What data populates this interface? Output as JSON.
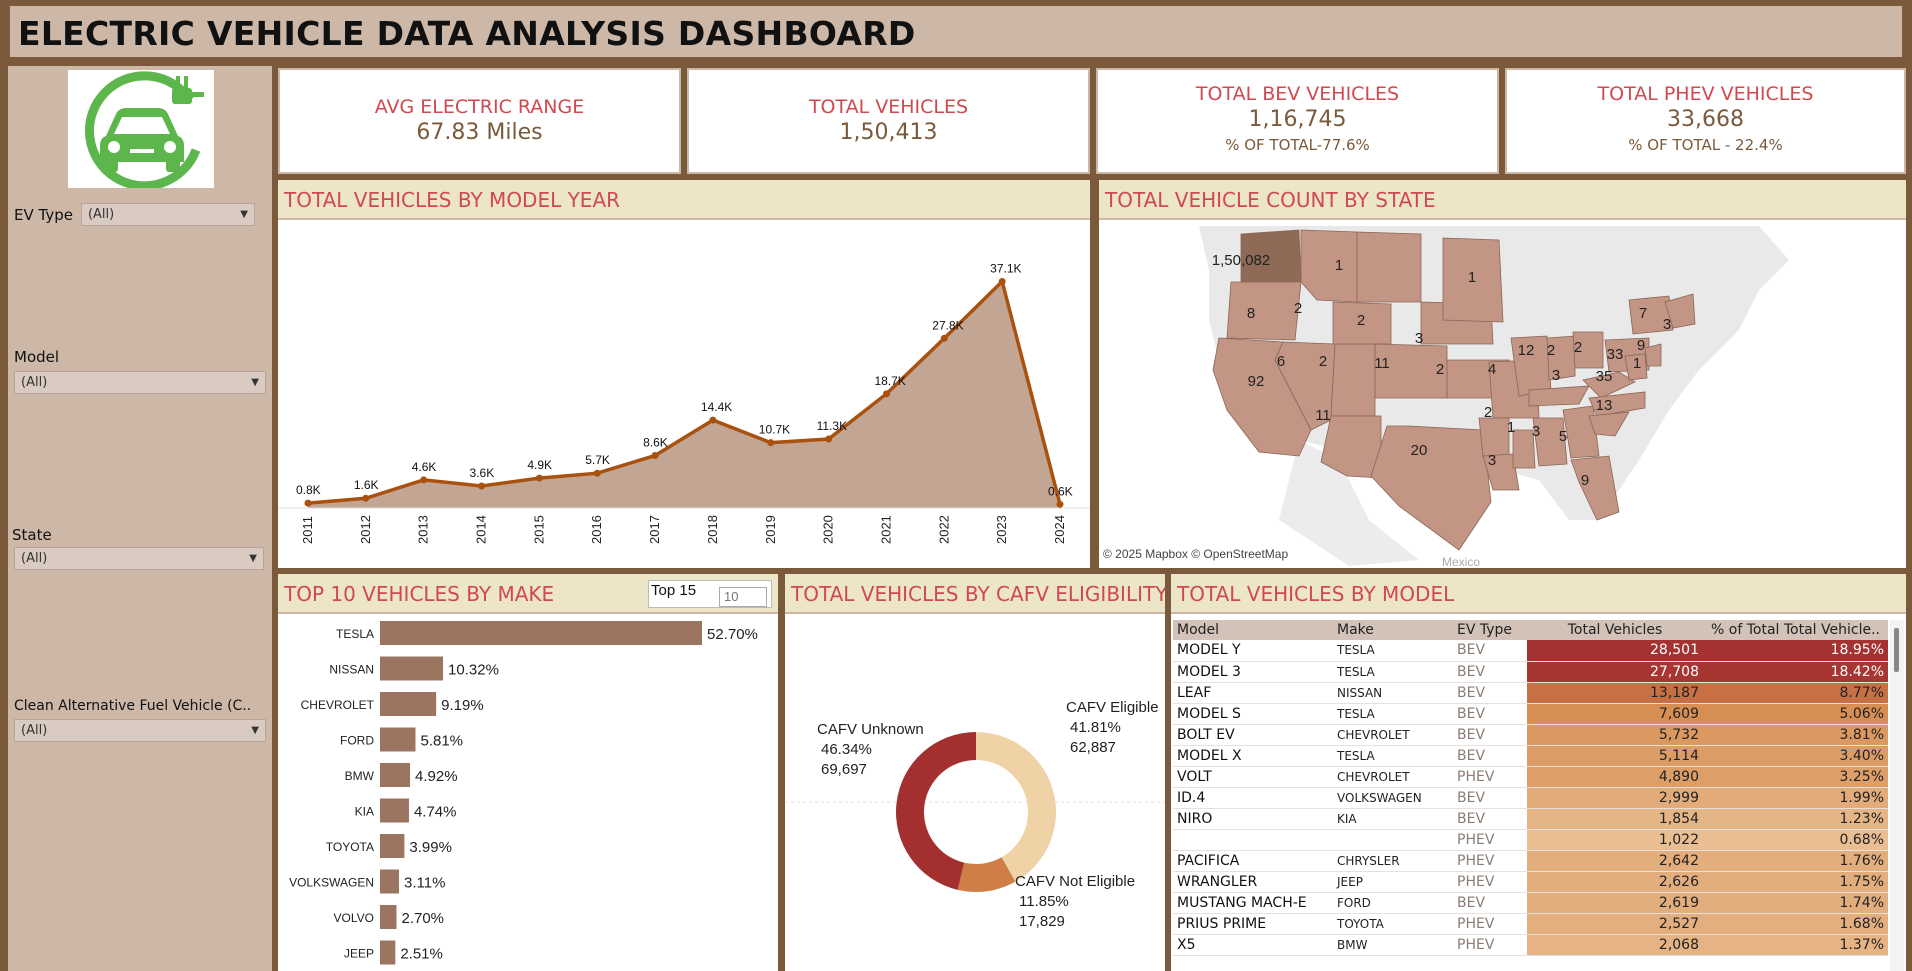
{
  "title": "ELECTRIC VEHICLE DATA ANALYSIS DASHBOARD",
  "filters": [
    {
      "label": "EV Type",
      "value": "(All)"
    },
    {
      "label": "Model",
      "value": "(All)"
    },
    {
      "label": "State",
      "value": "(All)"
    },
    {
      "label": "Clean Alternative Fuel Vehicle (C..",
      "value": "(All)"
    }
  ],
  "kpis": [
    {
      "label": "AVG ELECTRIC RANGE",
      "value": "67.83 Miles",
      "sub": ""
    },
    {
      "label": "TOTAL VEHICLES",
      "value": "1,50,413",
      "sub": ""
    },
    {
      "label": "TOTAL BEV VEHICLES",
      "value": "1,16,745",
      "sub": "% OF TOTAL-77.6%"
    },
    {
      "label": "TOTAL PHEV VEHICLES",
      "value": "33,668",
      "sub": "% OF TOTAL - 22.4%"
    }
  ],
  "panels": {
    "year": "TOTAL VEHICLES BY MODEL YEAR",
    "state": "TOTAL VEHICLE COUNT BY STATE",
    "make": "TOP 10 VEHICLES BY MAKE",
    "cafv": "TOTAL VEHICLES BY CAFV ELIGIBILITY",
    "model": "TOTAL VEHICLES BY MODEL"
  },
  "topn": {
    "label": "Top 15",
    "value": "10"
  },
  "map_credit": "© 2025 Mapbox © OpenStreetMap",
  "map_country_label": "Mexico",
  "map_labels": [
    {
      "text": "1,50,082",
      "x": 142,
      "y": 45,
      "color": "#8e6a57"
    },
    {
      "text": "1",
      "x": 240,
      "y": 50
    },
    {
      "text": "1",
      "x": 373,
      "y": 62
    },
    {
      "text": "8",
      "x": 152,
      "y": 98
    },
    {
      "text": "2",
      "x": 199,
      "y": 93
    },
    {
      "text": "2",
      "x": 262,
      "y": 105
    },
    {
      "text": "3",
      "x": 320,
      "y": 123
    },
    {
      "text": "6",
      "x": 182,
      "y": 146
    },
    {
      "text": "2",
      "x": 224,
      "y": 146
    },
    {
      "text": "11",
      "x": 283,
      "y": 148
    },
    {
      "text": "2",
      "x": 341,
      "y": 154
    },
    {
      "text": "4",
      "x": 393,
      "y": 154
    },
    {
      "text": "92",
      "x": 157,
      "y": 166
    },
    {
      "text": "12",
      "x": 427,
      "y": 135
    },
    {
      "text": "2",
      "x": 452,
      "y": 135
    },
    {
      "text": "2",
      "x": 479,
      "y": 132
    },
    {
      "text": "3",
      "x": 457,
      "y": 160
    },
    {
      "text": "7",
      "x": 544,
      "y": 98
    },
    {
      "text": "3",
      "x": 568,
      "y": 109
    },
    {
      "text": "9",
      "x": 542,
      "y": 130
    },
    {
      "text": "33",
      "x": 516,
      "y": 139
    },
    {
      "text": "1",
      "x": 538,
      "y": 148
    },
    {
      "text": "35",
      "x": 505,
      "y": 161
    },
    {
      "text": "13",
      "x": 505,
      "y": 190
    },
    {
      "text": "11",
      "x": 224,
      "y": 200
    },
    {
      "text": "2",
      "x": 389,
      "y": 197
    },
    {
      "text": "1",
      "x": 412,
      "y": 212
    },
    {
      "text": "3",
      "x": 437,
      "y": 216
    },
    {
      "text": "5",
      "x": 464,
      "y": 221
    },
    {
      "text": "20",
      "x": 320,
      "y": 235
    },
    {
      "text": "3",
      "x": 393,
      "y": 245
    },
    {
      "text": "9",
      "x": 486,
      "y": 265
    }
  ],
  "chart_data": [
    {
      "type": "area",
      "x": [
        "2011",
        "2012",
        "2013",
        "2014",
        "2015",
        "2016",
        "2017",
        "2018",
        "2019",
        "2020",
        "2021",
        "2022",
        "2023",
        "2024"
      ],
      "values": [
        0.8,
        1.6,
        4.6,
        3.6,
        4.9,
        5.7,
        8.6,
        14.4,
        10.7,
        11.3,
        18.7,
        27.8,
        37.1,
        0.6
      ],
      "labels": [
        "0.8K",
        "1.6K",
        "4.6K",
        "3.6K",
        "4.9K",
        "5.7K",
        "8.6K",
        "14.4K",
        "10.7K",
        "11.3K",
        "18.7K",
        "27.8K",
        "37.1K",
        "0.6K"
      ],
      "ylim": [
        0,
        38
      ]
    },
    {
      "type": "bar",
      "orientation": "horizontal",
      "categories": [
        "TESLA",
        "NISSAN",
        "CHEVROLET",
        "FORD",
        "BMW",
        "KIA",
        "TOYOTA",
        "VOLKSWAGEN",
        "VOLVO",
        "JEEP"
      ],
      "values": [
        52.7,
        10.32,
        9.19,
        5.81,
        4.92,
        4.74,
        3.99,
        3.11,
        2.7,
        2.51
      ],
      "labels": [
        "52.70%",
        "10.32%",
        "9.19%",
        "5.81%",
        "4.92%",
        "4.74%",
        "3.99%",
        "3.11%",
        "2.70%",
        "2.51%"
      ]
    },
    {
      "type": "pie",
      "donut": true,
      "categories": [
        "CAFV Eligible",
        "CAFV Not Eligible",
        "CAFV Unknown"
      ],
      "values": [
        62887,
        17829,
        69697
      ],
      "percent_labels": [
        "41.81%",
        "11.85%",
        "46.34%"
      ],
      "count_labels": [
        "62,887",
        "17,829",
        "69,697"
      ],
      "colors": [
        "#efd3a6",
        "#cf7f46",
        "#a3302f"
      ]
    },
    {
      "type": "table",
      "columns": [
        "Model",
        "Make",
        "EV Type",
        "Total Vehicles",
        "% of Total Total Vehicle.."
      ],
      "rows": [
        {
          "model": "MODEL Y",
          "make": "TESLA",
          "ev": "BEV",
          "total": "28,501",
          "pct": "18.95%",
          "total_v": 28501
        },
        {
          "model": "MODEL 3",
          "make": "TESLA",
          "ev": "BEV",
          "total": "27,708",
          "pct": "18.42%",
          "total_v": 27708
        },
        {
          "model": "LEAF",
          "make": "NISSAN",
          "ev": "BEV",
          "total": "13,187",
          "pct": "8.77%",
          "total_v": 13187
        },
        {
          "model": "MODEL S",
          "make": "TESLA",
          "ev": "BEV",
          "total": "7,609",
          "pct": "5.06%",
          "total_v": 7609
        },
        {
          "model": "BOLT EV",
          "make": "CHEVROLET",
          "ev": "BEV",
          "total": "5,732",
          "pct": "3.81%",
          "total_v": 5732
        },
        {
          "model": "MODEL X",
          "make": "TESLA",
          "ev": "BEV",
          "total": "5,114",
          "pct": "3.40%",
          "total_v": 5114
        },
        {
          "model": "VOLT",
          "make": "CHEVROLET",
          "ev": "PHEV",
          "total": "4,890",
          "pct": "3.25%",
          "total_v": 4890
        },
        {
          "model": "ID.4",
          "make": "VOLKSWAGEN",
          "ev": "BEV",
          "total": "2,999",
          "pct": "1.99%",
          "total_v": 2999
        },
        {
          "model": "NIRO",
          "make": "KIA",
          "ev": "BEV",
          "total": "1,854",
          "pct": "1.23%",
          "total_v": 1854
        },
        {
          "model": "",
          "make": "",
          "ev": "PHEV",
          "total": "1,022",
          "pct": "0.68%",
          "total_v": 1022
        },
        {
          "model": "PACIFICA",
          "make": "CHRYSLER",
          "ev": "PHEV",
          "total": "2,642",
          "pct": "1.76%",
          "total_v": 2642
        },
        {
          "model": "WRANGLER",
          "make": "JEEP",
          "ev": "PHEV",
          "total": "2,626",
          "pct": "1.75%",
          "total_v": 2626
        },
        {
          "model": "MUSTANG MACH-E",
          "make": "FORD",
          "ev": "BEV",
          "total": "2,619",
          "pct": "1.74%",
          "total_v": 2619
        },
        {
          "model": "PRIUS PRIME",
          "make": "TOYOTA",
          "ev": "PHEV",
          "total": "2,527",
          "pct": "1.68%",
          "total_v": 2527
        },
        {
          "model": "X5",
          "make": "BMW",
          "ev": "PHEV",
          "total": "2,068",
          "pct": "1.37%",
          "total_v": 2068
        }
      ]
    }
  ]
}
